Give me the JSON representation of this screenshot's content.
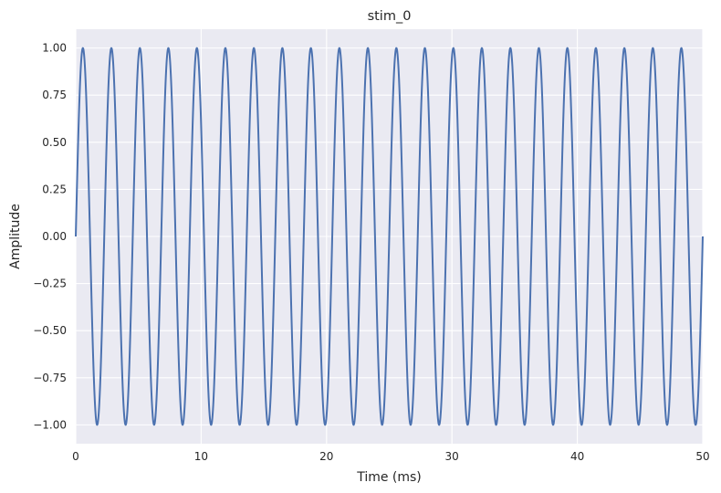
{
  "chart_data": {
    "type": "line",
    "title": "stim_0",
    "xlabel": "Time (ms)",
    "ylabel": "Amplitude",
    "xlim": [
      0,
      50
    ],
    "ylim": [
      -1.1,
      1.1
    ],
    "xticks": [
      0,
      10,
      20,
      30,
      40,
      50
    ],
    "xtick_labels": [
      "0",
      "10",
      "20",
      "30",
      "40",
      "50"
    ],
    "yticks": [
      1.0,
      0.75,
      0.5,
      0.25,
      0.0,
      -0.25,
      -0.5,
      -0.75,
      -1.0
    ],
    "ytick_labels": [
      "1.00",
      "0.75",
      "0.50",
      "0.25",
      "0.00",
      "−0.25",
      "−0.50",
      "−0.75",
      "−1.00"
    ],
    "grid": true,
    "background_color": "#eaeaf2",
    "series": [
      {
        "function": "sine",
        "amplitude": 1.0,
        "frequency_hz": 440,
        "x_start": 0,
        "x_end": 50,
        "color": "#4c72b0"
      }
    ]
  }
}
